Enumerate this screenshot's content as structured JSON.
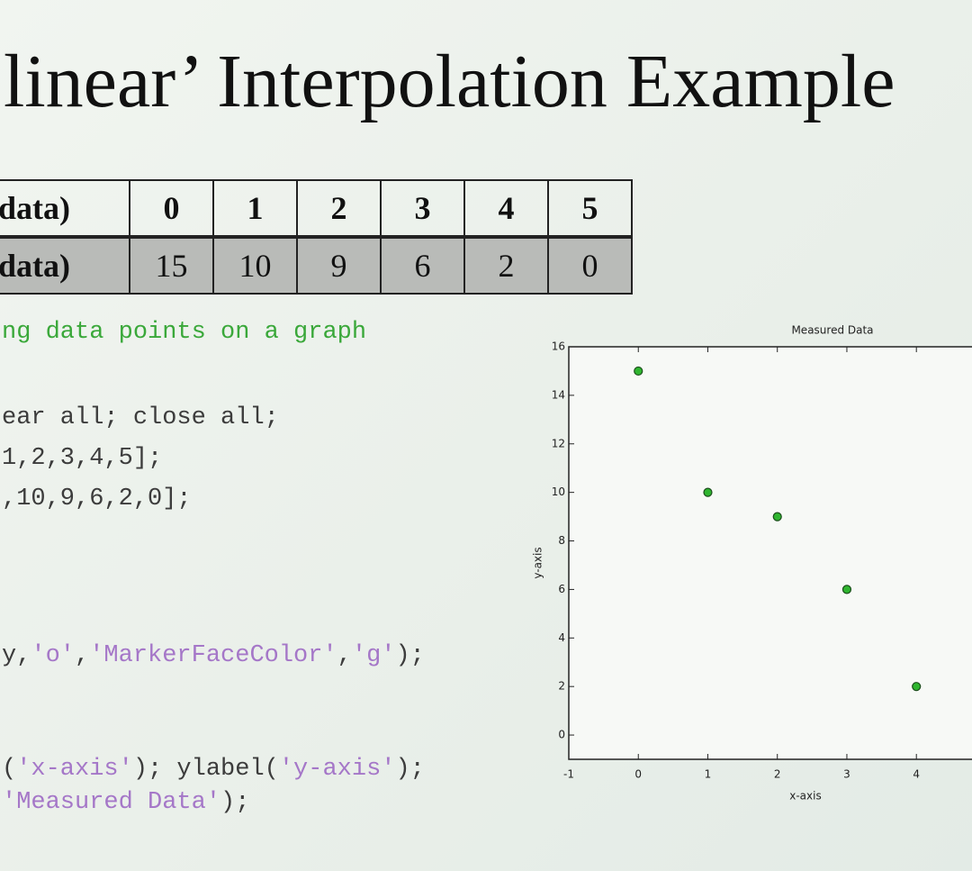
{
  "title": "linear’ Interpolation Example",
  "table": {
    "rows": [
      [
        "data)",
        0,
        1,
        2,
        3,
        4,
        5
      ],
      [
        "data)",
        15,
        10,
        9,
        6,
        2,
        0
      ]
    ]
  },
  "code": {
    "lines": [
      [
        "ng data points on a graph"
      ],
      [
        "ear all; close all;"
      ],
      [
        "1,2,3,4,5];"
      ],
      [
        ",10,9,6,2,0];"
      ],
      [
        "y,",
        "'o'",
        ",",
        "'MarkerFaceColor'",
        ",",
        "'g'",
        ");"
      ],
      [
        "(",
        "'x-axis'",
        "); ylabel(",
        "'y-axis'",
        ");"
      ],
      [
        "'Measured Data'",
        ");"
      ]
    ]
  },
  "chart_data": {
    "type": "scatter",
    "title": "Measured Data",
    "x_label": "x-axis",
    "y_label": "y-axis",
    "x": [
      0,
      1,
      2,
      3,
      4
    ],
    "values": [
      15,
      10,
      9,
      6,
      2
    ],
    "color": "#2fb52f",
    "xlim": [
      -1,
      4.8
    ],
    "ylim": [
      -1,
      16
    ],
    "xticks": [
      -1,
      0,
      1,
      2,
      3,
      4
    ],
    "yticks": [
      0,
      2,
      4,
      6,
      8,
      10,
      12,
      14,
      16
    ]
  }
}
